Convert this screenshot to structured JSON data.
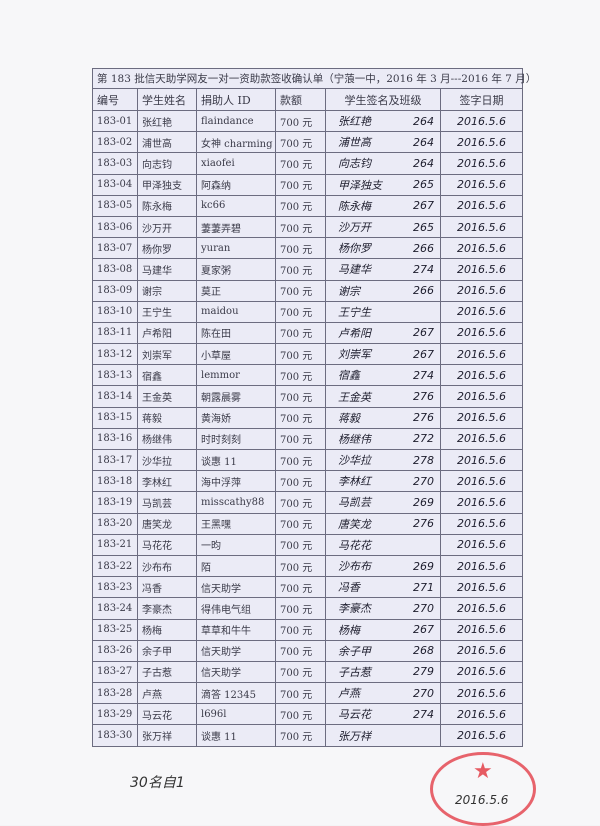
{
  "title": "第 183 批信天助学网友一对一资助款签收确认单（宁蒗一中，2016 年 3 月---2016 年 7 月）",
  "headers": [
    "编号",
    "学生姓名",
    "捐助人 ID",
    "款额",
    "学生签名及班级",
    "签字日期"
  ],
  "rows": [
    {
      "id": "183-01",
      "name": "张红艳",
      "donor": "flaindance",
      "amount": "700 元",
      "sig": "张红艳",
      "cls": "264",
      "date": "2016.5.6"
    },
    {
      "id": "183-02",
      "name": "浦世高",
      "donor": "女神 charming",
      "amount": "700 元",
      "sig": "浦世高",
      "cls": "264",
      "date": "2016.5.6"
    },
    {
      "id": "183-03",
      "name": "向志钧",
      "donor": "xiaofei",
      "amount": "700 元",
      "sig": "向志钧",
      "cls": "264",
      "date": "2016.5.6"
    },
    {
      "id": "183-04",
      "name": "甲泽独支",
      "donor": "阿森纳",
      "amount": "700 元",
      "sig": "甲泽独支",
      "cls": "265",
      "date": "2016.5.6"
    },
    {
      "id": "183-05",
      "name": "陈永梅",
      "donor": "kc66",
      "amount": "700 元",
      "sig": "陈永梅",
      "cls": "267",
      "date": "2016.5.6"
    },
    {
      "id": "183-06",
      "name": "沙万开",
      "donor": "萋萋弄碧",
      "amount": "700 元",
      "sig": "沙万开",
      "cls": "265",
      "date": "2016.5.6"
    },
    {
      "id": "183-07",
      "name": "杨你罗",
      "donor": "yuran",
      "amount": "700 元",
      "sig": "杨你罗",
      "cls": "266",
      "date": "2016.5.6"
    },
    {
      "id": "183-08",
      "name": "马建华",
      "donor": "夏家粥",
      "amount": "700 元",
      "sig": "马建华",
      "cls": "274",
      "date": "2016.5.6"
    },
    {
      "id": "183-09",
      "name": "谢宗",
      "donor": "莫正",
      "amount": "700 元",
      "sig": "谢宗",
      "cls": "266",
      "date": "2016.5.6"
    },
    {
      "id": "183-10",
      "name": "王宁生",
      "donor": "maidou",
      "amount": "700 元",
      "sig": "王宁生",
      "cls": "",
      "date": "2016.5.6"
    },
    {
      "id": "183-11",
      "name": "卢希阳",
      "donor": "陈在田",
      "amount": "700 元",
      "sig": "卢希阳",
      "cls": "267",
      "date": "2016.5.6"
    },
    {
      "id": "183-12",
      "name": "刘崇军",
      "donor": "小草屋",
      "amount": "700 元",
      "sig": "刘崇军",
      "cls": "267",
      "date": "2016.5.6"
    },
    {
      "id": "183-13",
      "name": "宿鑫",
      "donor": "lemmor",
      "amount": "700 元",
      "sig": "宿鑫",
      "cls": "274",
      "date": "2016.5.6"
    },
    {
      "id": "183-14",
      "name": "王金英",
      "donor": "朝露晨雾",
      "amount": "700 元",
      "sig": "王金英",
      "cls": "276",
      "date": "2016.5.6"
    },
    {
      "id": "183-15",
      "name": "蒋毅",
      "donor": "黄海娇",
      "amount": "700 元",
      "sig": "蒋毅",
      "cls": "276",
      "date": "2016.5.6"
    },
    {
      "id": "183-16",
      "name": "杨继伟",
      "donor": "时时刻刻",
      "amount": "700 元",
      "sig": "杨继伟",
      "cls": "272",
      "date": "2016.5.6"
    },
    {
      "id": "183-17",
      "name": "沙华拉",
      "donor": "谈惠 11",
      "amount": "700 元",
      "sig": "沙华拉",
      "cls": "278",
      "date": "2016.5.6"
    },
    {
      "id": "183-18",
      "name": "李林红",
      "donor": "海中浮萍",
      "amount": "700 元",
      "sig": "李林红",
      "cls": "270",
      "date": "2016.5.6"
    },
    {
      "id": "183-19",
      "name": "马凯芸",
      "donor": "misscathy88",
      "amount": "700 元",
      "sig": "马凯芸",
      "cls": "269",
      "date": "2016.5.6"
    },
    {
      "id": "183-20",
      "name": "唐笑龙",
      "donor": "王黑嘿",
      "amount": "700 元",
      "sig": "唐笑龙",
      "cls": "276",
      "date": "2016.5.6"
    },
    {
      "id": "183-21",
      "name": "马花花",
      "donor": "一昀",
      "amount": "700 元",
      "sig": "马花花",
      "cls": "",
      "date": "2016.5.6"
    },
    {
      "id": "183-22",
      "name": "沙布布",
      "donor": "陌",
      "amount": "700 元",
      "sig": "沙布布",
      "cls": "269",
      "date": "2016.5.6"
    },
    {
      "id": "183-23",
      "name": "冯香",
      "donor": "信天助学",
      "amount": "700 元",
      "sig": "冯香",
      "cls": "271",
      "date": "2016.5.6"
    },
    {
      "id": "183-24",
      "name": "李豪杰",
      "donor": "得伟电气组",
      "amount": "700 元",
      "sig": "李豪杰",
      "cls": "270",
      "date": "2016.5.6"
    },
    {
      "id": "183-25",
      "name": "杨梅",
      "donor": "草草和牛牛",
      "amount": "700 元",
      "sig": "杨梅",
      "cls": "267",
      "date": "2016.5.6"
    },
    {
      "id": "183-26",
      "name": "余子甲",
      "donor": "信天助学",
      "amount": "700 元",
      "sig": "余子甲",
      "cls": "268",
      "date": "2016.5.6"
    },
    {
      "id": "183-27",
      "name": "子古惹",
      "donor": "信天助学",
      "amount": "700 元",
      "sig": "子古惹",
      "cls": "279",
      "date": "2016.5.6"
    },
    {
      "id": "183-28",
      "name": "卢燕",
      "donor": "滴答 12345",
      "amount": "700 元",
      "sig": "卢燕",
      "cls": "270",
      "date": "2016.5.6"
    },
    {
      "id": "183-29",
      "name": "马云花",
      "donor": "l696l",
      "amount": "700 元",
      "sig": "马云花",
      "cls": "274",
      "date": "2016.5.6"
    },
    {
      "id": "183-30",
      "name": "张万祥",
      "donor": "谈惠 11",
      "amount": "700 元",
      "sig": "张万祥",
      "cls": "",
      "date": "2016.5.6"
    }
  ],
  "footer_note": "30名自1",
  "stamp": {
    "date": "2016.5.6",
    "color": "#e1323c"
  }
}
